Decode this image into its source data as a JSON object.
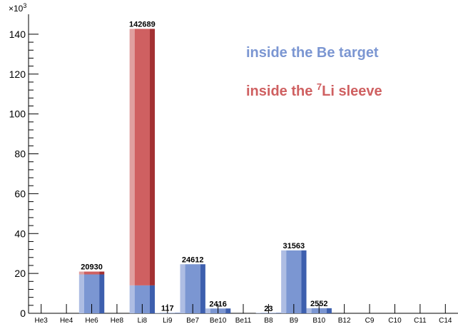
{
  "chart_data": {
    "type": "bar",
    "stacked": true,
    "categories": [
      "He3",
      "He4",
      "He6",
      "He8",
      "Li8",
      "Li9",
      "Be7",
      "Be10",
      "Be11",
      "B8",
      "B9",
      "B10",
      "B12",
      "C9",
      "C10",
      "C11",
      "C14"
    ],
    "series": [
      {
        "name": "inside the Be target",
        "color": "#7b96d2",
        "values": [
          0,
          0,
          19500,
          0,
          14000,
          117,
          24612,
          2416,
          0,
          23,
          31563,
          2552,
          0,
          0,
          0,
          0,
          0
        ]
      },
      {
        "name": "inside the Li sleeve",
        "color": "#cf6061",
        "values": [
          0,
          0,
          1430,
          0,
          128689,
          0,
          0,
          0,
          0,
          0,
          0,
          0,
          0,
          0,
          0,
          0,
          0
        ]
      }
    ],
    "totals": [
      0,
      0,
      20930,
      0,
      142689,
      117,
      24612,
      2416,
      0,
      23,
      31563,
      2552,
      0,
      0,
      0,
      0,
      0
    ],
    "data_labels": [
      "",
      "",
      "20930",
      "",
      "142689",
      "117",
      "24612",
      "2416",
      "",
      "23",
      "31563",
      "2552",
      "",
      "",
      "",
      "",
      ""
    ],
    "ylim": [
      0,
      150000
    ],
    "y_ticks": [
      "0",
      "20",
      "40",
      "60",
      "80",
      "100",
      "120",
      "140"
    ],
    "y_multiplier": "×10",
    "y_multiplier_exp": "3",
    "legend": {
      "placement": "top-right",
      "entries": [
        {
          "prefix": "inside the Be target",
          "sup": "",
          "suffix": ""
        },
        {
          "prefix": "inside the ",
          "sup": "7",
          "suffix": "Li sleeve"
        }
      ]
    }
  }
}
